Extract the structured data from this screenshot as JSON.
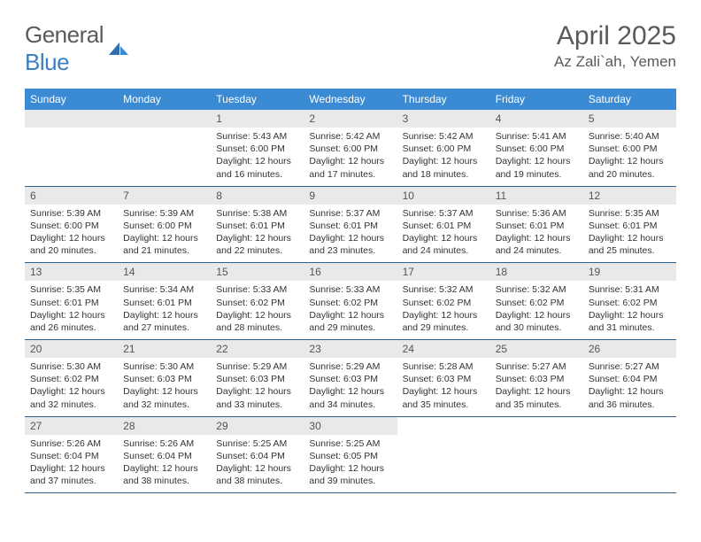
{
  "brand": {
    "text1": "General",
    "text2": "Blue"
  },
  "title": "April 2025",
  "location": "Az Zali`ah, Yemen",
  "colors": {
    "header_bg": "#3b8bd4",
    "header_text": "#ffffff",
    "daynum_bg": "#e9e9e9",
    "row_border": "#2f5f8f",
    "brand_gray": "#5a5a5a",
    "brand_blue": "#3b7fc4"
  },
  "weekdays": [
    "Sunday",
    "Monday",
    "Tuesday",
    "Wednesday",
    "Thursday",
    "Friday",
    "Saturday"
  ],
  "layout": {
    "first_weekday_index": 2,
    "days_in_month": 30
  },
  "days": {
    "1": {
      "sunrise": "5:43 AM",
      "sunset": "6:00 PM",
      "daylight": "12 hours and 16 minutes."
    },
    "2": {
      "sunrise": "5:42 AM",
      "sunset": "6:00 PM",
      "daylight": "12 hours and 17 minutes."
    },
    "3": {
      "sunrise": "5:42 AM",
      "sunset": "6:00 PM",
      "daylight": "12 hours and 18 minutes."
    },
    "4": {
      "sunrise": "5:41 AM",
      "sunset": "6:00 PM",
      "daylight": "12 hours and 19 minutes."
    },
    "5": {
      "sunrise": "5:40 AM",
      "sunset": "6:00 PM",
      "daylight": "12 hours and 20 minutes."
    },
    "6": {
      "sunrise": "5:39 AM",
      "sunset": "6:00 PM",
      "daylight": "12 hours and 20 minutes."
    },
    "7": {
      "sunrise": "5:39 AM",
      "sunset": "6:00 PM",
      "daylight": "12 hours and 21 minutes."
    },
    "8": {
      "sunrise": "5:38 AM",
      "sunset": "6:01 PM",
      "daylight": "12 hours and 22 minutes."
    },
    "9": {
      "sunrise": "5:37 AM",
      "sunset": "6:01 PM",
      "daylight": "12 hours and 23 minutes."
    },
    "10": {
      "sunrise": "5:37 AM",
      "sunset": "6:01 PM",
      "daylight": "12 hours and 24 minutes."
    },
    "11": {
      "sunrise": "5:36 AM",
      "sunset": "6:01 PM",
      "daylight": "12 hours and 24 minutes."
    },
    "12": {
      "sunrise": "5:35 AM",
      "sunset": "6:01 PM",
      "daylight": "12 hours and 25 minutes."
    },
    "13": {
      "sunrise": "5:35 AM",
      "sunset": "6:01 PM",
      "daylight": "12 hours and 26 minutes."
    },
    "14": {
      "sunrise": "5:34 AM",
      "sunset": "6:01 PM",
      "daylight": "12 hours and 27 minutes."
    },
    "15": {
      "sunrise": "5:33 AM",
      "sunset": "6:02 PM",
      "daylight": "12 hours and 28 minutes."
    },
    "16": {
      "sunrise": "5:33 AM",
      "sunset": "6:02 PM",
      "daylight": "12 hours and 29 minutes."
    },
    "17": {
      "sunrise": "5:32 AM",
      "sunset": "6:02 PM",
      "daylight": "12 hours and 29 minutes."
    },
    "18": {
      "sunrise": "5:32 AM",
      "sunset": "6:02 PM",
      "daylight": "12 hours and 30 minutes."
    },
    "19": {
      "sunrise": "5:31 AM",
      "sunset": "6:02 PM",
      "daylight": "12 hours and 31 minutes."
    },
    "20": {
      "sunrise": "5:30 AM",
      "sunset": "6:02 PM",
      "daylight": "12 hours and 32 minutes."
    },
    "21": {
      "sunrise": "5:30 AM",
      "sunset": "6:03 PM",
      "daylight": "12 hours and 32 minutes."
    },
    "22": {
      "sunrise": "5:29 AM",
      "sunset": "6:03 PM",
      "daylight": "12 hours and 33 minutes."
    },
    "23": {
      "sunrise": "5:29 AM",
      "sunset": "6:03 PM",
      "daylight": "12 hours and 34 minutes."
    },
    "24": {
      "sunrise": "5:28 AM",
      "sunset": "6:03 PM",
      "daylight": "12 hours and 35 minutes."
    },
    "25": {
      "sunrise": "5:27 AM",
      "sunset": "6:03 PM",
      "daylight": "12 hours and 35 minutes."
    },
    "26": {
      "sunrise": "5:27 AM",
      "sunset": "6:04 PM",
      "daylight": "12 hours and 36 minutes."
    },
    "27": {
      "sunrise": "5:26 AM",
      "sunset": "6:04 PM",
      "daylight": "12 hours and 37 minutes."
    },
    "28": {
      "sunrise": "5:26 AM",
      "sunset": "6:04 PM",
      "daylight": "12 hours and 38 minutes."
    },
    "29": {
      "sunrise": "5:25 AM",
      "sunset": "6:04 PM",
      "daylight": "12 hours and 38 minutes."
    },
    "30": {
      "sunrise": "5:25 AM",
      "sunset": "6:05 PM",
      "daylight": "12 hours and 39 minutes."
    }
  },
  "labels": {
    "sunrise": "Sunrise: ",
    "sunset": "Sunset: ",
    "daylight": "Daylight: "
  }
}
